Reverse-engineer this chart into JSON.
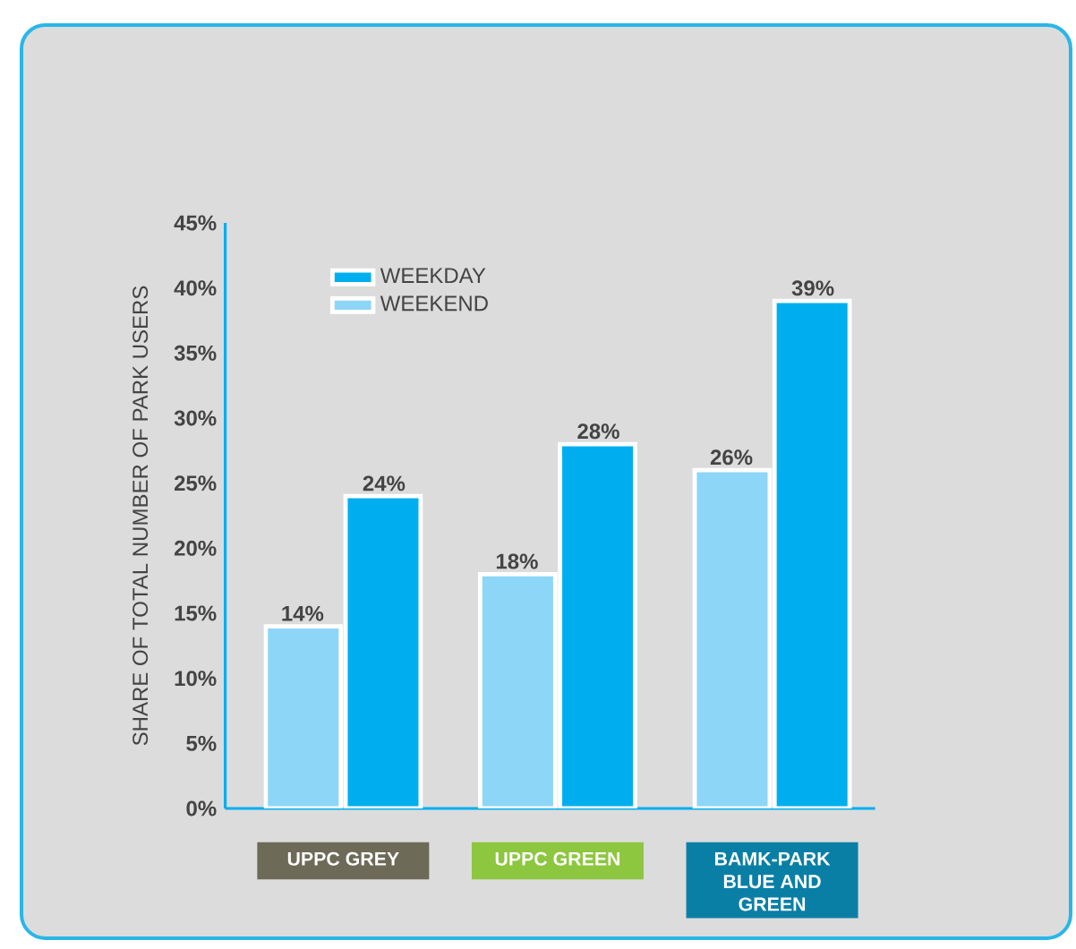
{
  "chart_data": {
    "type": "bar",
    "ylabel": "SHARE OF TOTAL NUMBER OF PARK USERS",
    "categories": [
      "UPPC GREY",
      "UPPC GREEN",
      "BAMK-PARK BLUE AND GREEN"
    ],
    "series": [
      {
        "name": "WEEKEND",
        "color": "#8dd6f7",
        "values": [
          14,
          18,
          26
        ],
        "value_labels": [
          "14%",
          "18%",
          "26%"
        ]
      },
      {
        "name": "WEEKDAY",
        "color": "#00aeef",
        "values": [
          24,
          28,
          39
        ],
        "value_labels": [
          "24%",
          "28%",
          "39%"
        ]
      }
    ],
    "ylim": [
      0,
      45
    ],
    "yticks": [
      {
        "value": 0,
        "label": "0%"
      },
      {
        "value": 5,
        "label": "5%"
      },
      {
        "value": 10,
        "label": "10%"
      },
      {
        "value": 15,
        "label": "15%"
      },
      {
        "value": 20,
        "label": "20%"
      },
      {
        "value": 25,
        "label": "25%"
      },
      {
        "value": 30,
        "label": "30%"
      },
      {
        "value": 35,
        "label": "35%"
      },
      {
        "value": 40,
        "label": "40%"
      },
      {
        "value": 45,
        "label": "45%"
      }
    ],
    "grid": false,
    "legend": "top left"
  }
}
